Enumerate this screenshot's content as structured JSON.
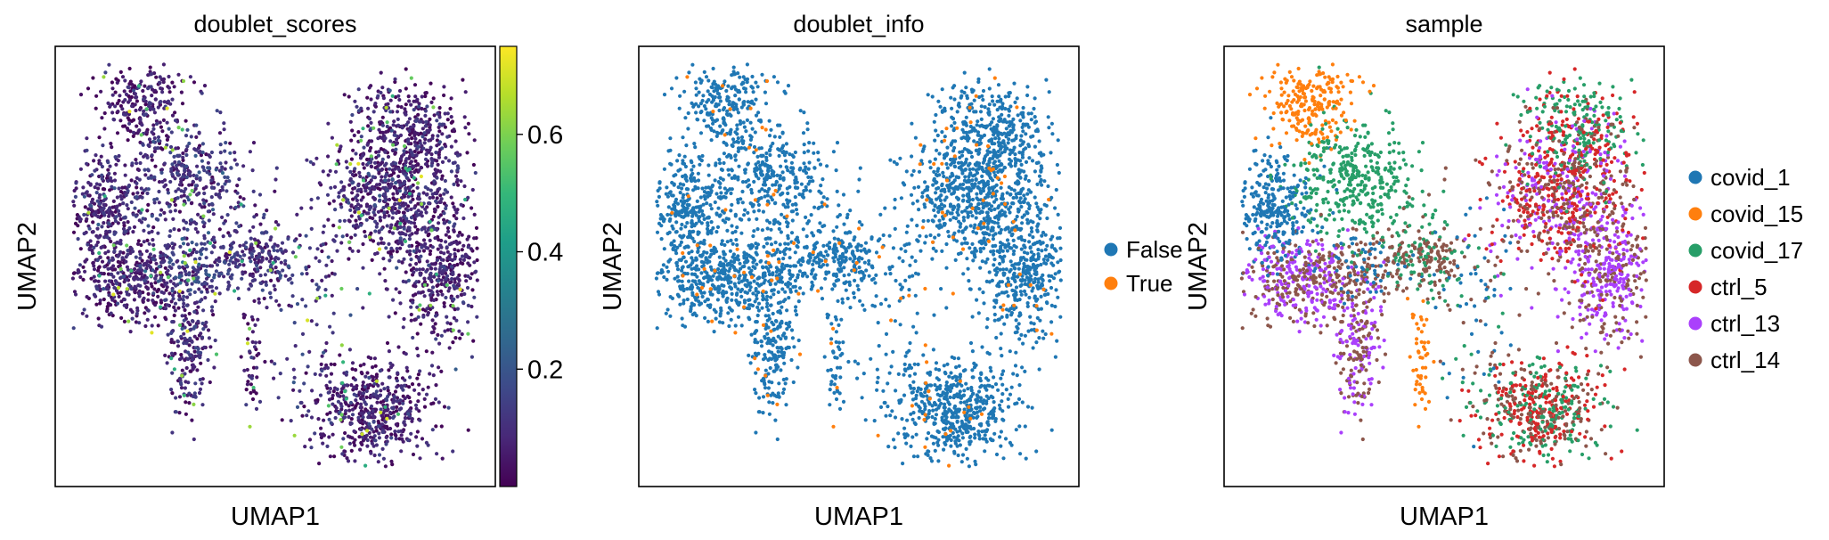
{
  "chart_data": [
    {
      "type": "scatter",
      "title": "doublet_scores",
      "xlabel": "UMAP1",
      "ylabel": "UMAP2",
      "grid": false,
      "color_mode": "continuous",
      "colorbar": {
        "colormap": "viridis",
        "range": [
          0.0,
          0.75
        ],
        "ticks": [
          0.2,
          0.4,
          0.6
        ],
        "tick_labels": [
          "0.2",
          "0.4",
          "0.6"
        ],
        "colors": [
          "#440154",
          "#482878",
          "#3e4989",
          "#31688e",
          "#26828e",
          "#1f9e89",
          "#35b779",
          "#6ece58",
          "#b5de2b",
          "#fde725"
        ]
      }
    },
    {
      "type": "scatter",
      "title": "doublet_info",
      "xlabel": "UMAP1",
      "ylabel": "UMAP2",
      "grid": false,
      "color_mode": "categorical",
      "legend_position": "right",
      "categories": [
        {
          "name": "False",
          "color": "#1f77b4"
        },
        {
          "name": "True",
          "color": "#ff7f0e"
        }
      ]
    },
    {
      "type": "scatter",
      "title": "sample",
      "xlabel": "UMAP1",
      "ylabel": "UMAP2",
      "grid": false,
      "color_mode": "categorical",
      "legend_position": "right",
      "categories": [
        {
          "name": "covid_1",
          "color": "#1f77b4"
        },
        {
          "name": "covid_15",
          "color": "#ff7f0e"
        },
        {
          "name": "covid_17",
          "color": "#279e68"
        },
        {
          "name": "ctrl_5",
          "color": "#d62728"
        },
        {
          "name": "ctrl_13",
          "color": "#aa40fc"
        },
        {
          "name": "ctrl_14",
          "color": "#8c564b"
        }
      ]
    }
  ]
}
